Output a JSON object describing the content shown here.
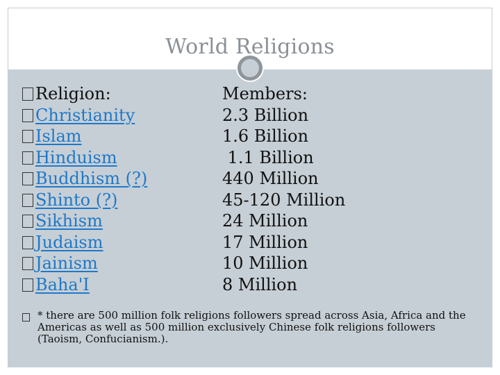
{
  "slide": {
    "title": "World Religions"
  },
  "religions": {
    "header": "Religion:",
    "items": [
      {
        "label": "Christianity"
      },
      {
        "label": "Islam"
      },
      {
        "label": "Hinduism"
      },
      {
        "label": "Buddhism (?)"
      },
      {
        "label": "Shinto (?)"
      },
      {
        "label": "Sikhism"
      },
      {
        "label": "Judaism"
      },
      {
        "label": "Jainism"
      },
      {
        "label": "Baha'I"
      }
    ]
  },
  "members": {
    "header": "Members:",
    "values": [
      "2.3 Billion",
      "1.6 Billion",
      " 1.1 Billion",
      "440 Million",
      "45-120 Million",
      "24 Million",
      "17 Million",
      "10 Million",
      "8 Million"
    ]
  },
  "footnote": {
    "text": "* there are 500 million folk religions followers spread across Asia, Africa and the Americas as well as 500 million exclusively Chinese folk religions followers (Taoism, Confucianism.)."
  },
  "colors": {
    "title": "#8a9197",
    "content_background": "#c6cfd6",
    "link": "#1f78c8",
    "ring": "#8e969c"
  },
  "icons": {
    "bullet": "missing-glyph-box-icon",
    "title_ornament": "ring-icon"
  }
}
